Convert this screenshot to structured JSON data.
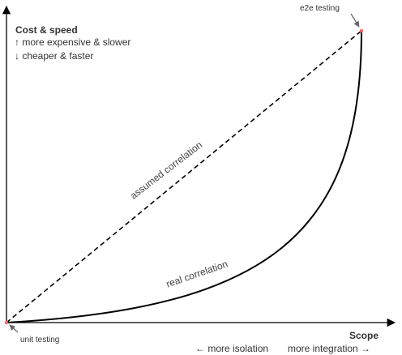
{
  "y_axis": {
    "title": "Cost & speed",
    "more": "↑ more expensive & slower",
    "less": "↓ cheaper & faster"
  },
  "x_axis": {
    "title": "Scope",
    "less": "← more isolation",
    "more": "more integration →"
  },
  "points": {
    "start": "unit testing",
    "end": "e2e testing"
  },
  "lines": {
    "assumed": "assumed correlation",
    "real": "real correlation"
  },
  "colors": {
    "axis": "#000000",
    "text": "#333333",
    "point": "#ff6666",
    "callout_arrow": "#666666"
  }
}
